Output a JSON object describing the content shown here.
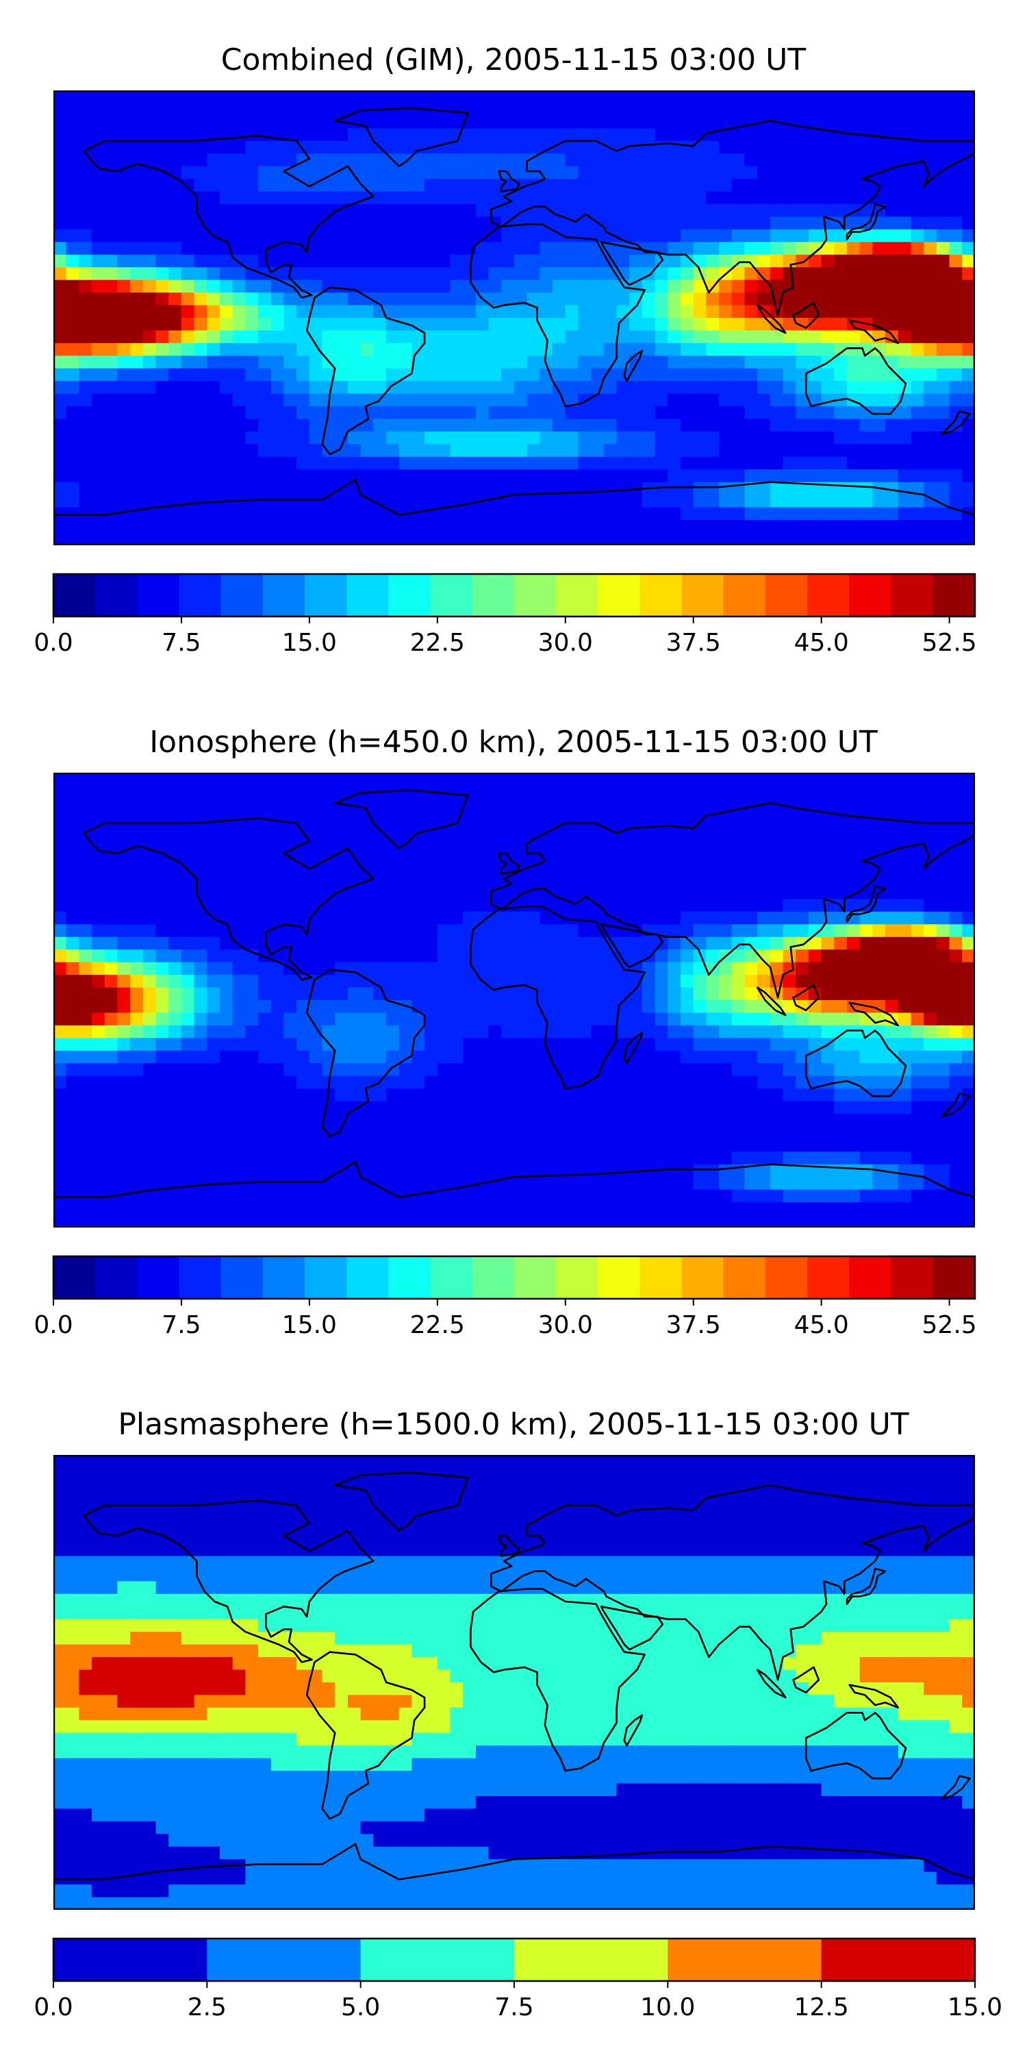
{
  "chart_data": [
    {
      "type": "heatmap",
      "title": "Combined (GIM), 2005-11-15 03:00 UT",
      "colorbar": {
        "ticks": [
          "0.0",
          "7.5",
          "15.0",
          "22.5",
          "30.0",
          "37.5",
          "45.0",
          "52.5"
        ],
        "tick_values": [
          0,
          7.5,
          15,
          22.5,
          30,
          37.5,
          45,
          52.5
        ],
        "range": [
          0,
          54
        ],
        "levels": 22,
        "colormap": "jet"
      },
      "grid": false,
      "background": 6,
      "features": [
        {
          "lon": -172,
          "lat": 0,
          "value": 52,
          "rlon": 40,
          "rlat": 15
        },
        {
          "lon": -150,
          "lat": 2,
          "value": 30,
          "rlon": 40,
          "rlat": 14
        },
        {
          "lon": -110,
          "lat": 0,
          "value": 8,
          "rlon": 30,
          "rlat": 10
        },
        {
          "lon": -60,
          "lat": -15,
          "value": 16,
          "rlon": 35,
          "rlat": 22
        },
        {
          "lon": -10,
          "lat": -15,
          "value": 9,
          "rlon": 25,
          "rlat": 25
        },
        {
          "lon": 25,
          "lat": 0,
          "value": 10,
          "rlon": 30,
          "rlat": 30
        },
        {
          "lon": 75,
          "lat": 5,
          "value": 22,
          "rlon": 25,
          "rlat": 20
        },
        {
          "lon": 110,
          "lat": 8,
          "value": 30,
          "rlon": 30,
          "rlat": 18
        },
        {
          "lon": 152,
          "lat": 20,
          "value": 54,
          "rlon": 22,
          "rlat": 9
        },
        {
          "lon": 170,
          "lat": 0,
          "value": 52,
          "rlon": 20,
          "rlat": 8
        },
        {
          "lon": 135,
          "lat": 12,
          "value": 40,
          "rlon": 35,
          "rlat": 16
        },
        {
          "lon": 140,
          "lat": -25,
          "value": 15,
          "rlon": 35,
          "rlat": 15
        },
        {
          "lon": 0,
          "lat": 60,
          "value": 4,
          "rlon": 90,
          "rlat": 15
        },
        {
          "lon": -80,
          "lat": 55,
          "value": 4,
          "rlon": 40,
          "rlat": 10
        },
        {
          "lon": 120,
          "lat": -70,
          "value": 15,
          "rlon": 45,
          "rlat": 8
        },
        {
          "lon": -10,
          "lat": -50,
          "value": 12,
          "rlon": 60,
          "rlat": 8
        }
      ]
    },
    {
      "type": "heatmap",
      "title": "Ionosphere  (h=450.0 km), 2005-11-15 03:00 UT",
      "colorbar": {
        "ticks": [
          "0.0",
          "7.5",
          "15.0",
          "22.5",
          "30.0",
          "37.5",
          "45.0",
          "52.5"
        ],
        "tick_values": [
          0,
          7.5,
          15,
          22.5,
          30,
          37.5,
          45,
          52.5
        ],
        "range": [
          0,
          54
        ],
        "levels": 22,
        "colormap": "jet"
      },
      "grid": false,
      "background": 5,
      "features": [
        {
          "lon": -175,
          "lat": 0,
          "value": 38,
          "rlon": 30,
          "rlat": 15
        },
        {
          "lon": -150,
          "lat": 0,
          "value": 20,
          "rlon": 40,
          "rlat": 18
        },
        {
          "lon": -30,
          "lat": 30,
          "value": 2,
          "rlon": 70,
          "rlat": 25
        },
        {
          "lon": 15,
          "lat": 0,
          "value": 3,
          "rlon": 40,
          "rlat": 30
        },
        {
          "lon": 80,
          "lat": 5,
          "value": 16,
          "rlon": 25,
          "rlat": 20
        },
        {
          "lon": 120,
          "lat": 8,
          "value": 28,
          "rlon": 30,
          "rlat": 18
        },
        {
          "lon": 155,
          "lat": 20,
          "value": 45,
          "rlon": 22,
          "rlat": 9
        },
        {
          "lon": 172,
          "lat": 0,
          "value": 44,
          "rlon": 18,
          "rlat": 8
        },
        {
          "lon": 140,
          "lat": 10,
          "value": 34,
          "rlon": 35,
          "rlat": 15
        },
        {
          "lon": 140,
          "lat": -25,
          "value": 11,
          "rlon": 35,
          "rlat": 15
        },
        {
          "lon": 120,
          "lat": -70,
          "value": 13,
          "rlon": 40,
          "rlat": 8
        },
        {
          "lon": -60,
          "lat": -15,
          "value": 9,
          "rlon": 30,
          "rlat": 20
        }
      ]
    },
    {
      "type": "heatmap",
      "title": "Plasmasphere (h=1500.0 km), 2005-11-15 03:00 UT",
      "colorbar": {
        "ticks": [
          "0.0",
          "2.5",
          "5.0",
          "7.5",
          "10.0",
          "12.5",
          "15.0"
        ],
        "tick_values": [
          0,
          2.5,
          5,
          7.5,
          10,
          12.5,
          15
        ],
        "range": [
          0,
          15
        ],
        "levels": 6,
        "colormap": "jet"
      },
      "grid": false,
      "bands": [
        {
          "lat": 90,
          "value": 1.0
        },
        {
          "lat": 55,
          "value": 1.5
        },
        {
          "lat": 42,
          "value": 4.0
        },
        {
          "lat": 30,
          "value": 6.2
        },
        {
          "lat": 15,
          "value": 6.8
        },
        {
          "lat": 0,
          "value": 6.6
        },
        {
          "lat": -15,
          "value": 6.2
        },
        {
          "lat": -30,
          "value": 4.5
        },
        {
          "lat": -45,
          "value": 3.0
        },
        {
          "lat": -60,
          "value": 2.5
        },
        {
          "lat": -75,
          "value": 3.0
        },
        {
          "lat": -90,
          "value": 3.0
        }
      ],
      "features": [
        {
          "lon": -150,
          "lat": 0,
          "value": 6.0,
          "rlon": 50,
          "rlat": 20
        },
        {
          "lon": -125,
          "lat": 3,
          "value": 4.0,
          "rlon": 35,
          "rlat": 12
        },
        {
          "lon": -80,
          "lat": -10,
          "value": 2.5,
          "rlon": 25,
          "rlat": 22
        },
        {
          "lon": -45,
          "lat": -10,
          "value": 3.5,
          "rlon": 22,
          "rlat": 18
        },
        {
          "lon": 140,
          "lat": 5,
          "value": 3.0,
          "rlon": 28,
          "rlat": 12
        },
        {
          "lon": 80,
          "lat": -55,
          "value": -3.0,
          "rlon": 75,
          "rlat": 12
        },
        {
          "lon": -150,
          "lat": -75,
          "value": -3.0,
          "rlon": 35,
          "rlat": 6
        },
        {
          "lon": 0,
          "lat": 65,
          "value": -1.0,
          "rlon": 80,
          "rlat": 12
        },
        {
          "lon": -121,
          "lat": 2,
          "value": 3.0,
          "rlon": 3,
          "rlat": 2
        }
      ]
    }
  ]
}
